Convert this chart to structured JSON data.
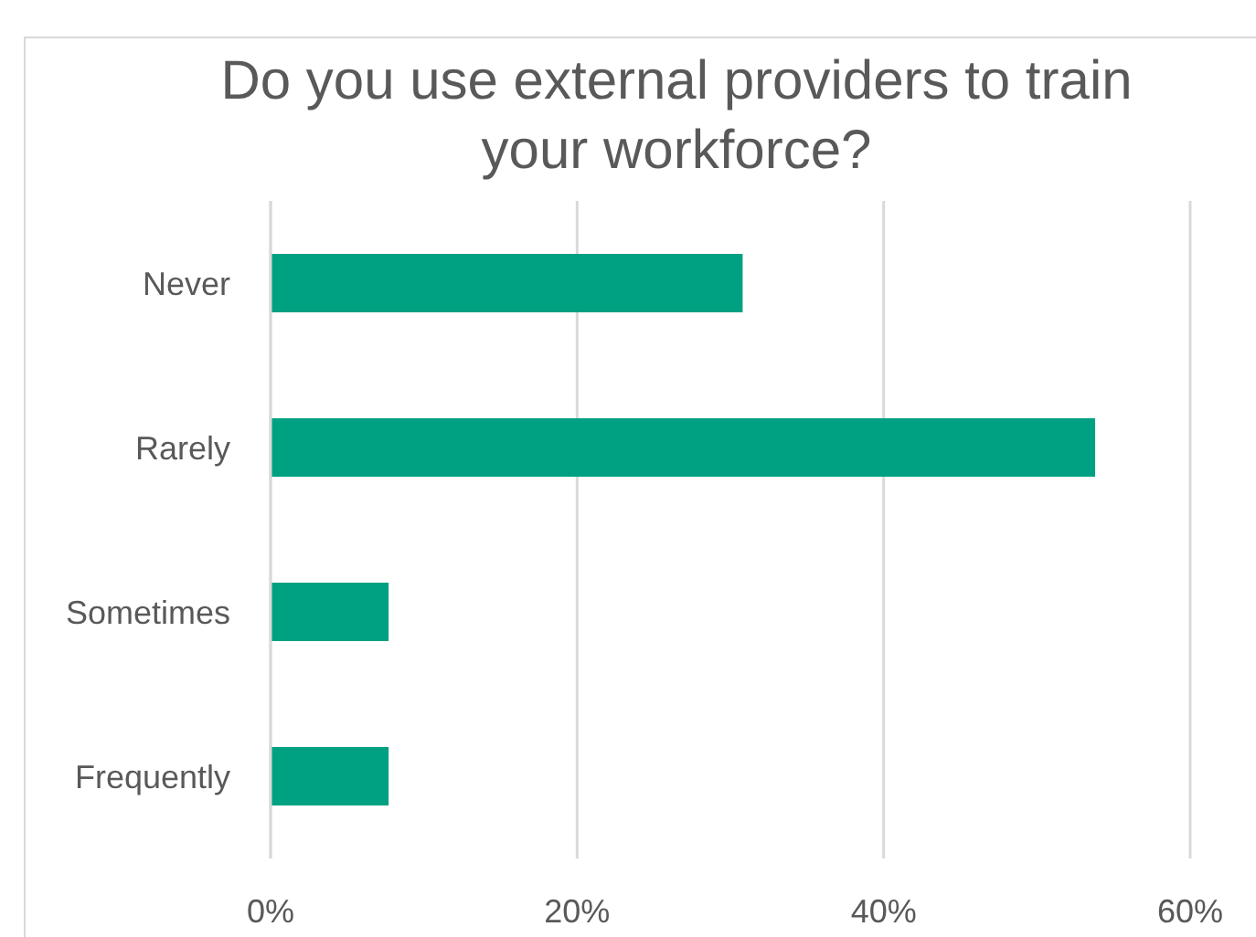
{
  "chart_data": {
    "type": "bar",
    "orientation": "horizontal",
    "title": "Do you use external providers to train your workforce?",
    "categories": [
      "Never",
      "Rarely",
      "Sometimes",
      "Frequently"
    ],
    "values": [
      30.8,
      53.8,
      7.7,
      7.7
    ],
    "color": "#00a182",
    "xlim": [
      0,
      60
    ],
    "xticks": [
      {
        "value": 0,
        "label": "0%"
      },
      {
        "value": 20,
        "label": "20%"
      },
      {
        "value": 40,
        "label": "40%"
      },
      {
        "value": 60,
        "label": "60%"
      }
    ],
    "grid": "x"
  }
}
